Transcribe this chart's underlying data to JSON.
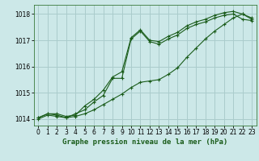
{
  "background_color": "#cce8e8",
  "grid_color": "#aacccc",
  "line_color": "#1a5c1a",
  "marker_color": "#1a5c1a",
  "title": "Graphe pression niveau de la mer (hPa)",
  "ylim": [
    1013.75,
    1018.35
  ],
  "xlim": [
    -0.5,
    23.5
  ],
  "yticks": [
    1014,
    1015,
    1016,
    1017,
    1018
  ],
  "xticks": [
    0,
    1,
    2,
    3,
    4,
    5,
    6,
    7,
    8,
    9,
    10,
    11,
    12,
    13,
    14,
    15,
    16,
    17,
    18,
    19,
    20,
    21,
    22,
    23
  ],
  "series1_x": [
    0,
    1,
    2,
    3,
    4,
    5,
    6,
    7,
    8,
    9,
    10,
    11,
    12,
    13,
    14,
    15,
    16,
    17,
    18,
    19,
    20,
    21,
    22,
    23
  ],
  "series1_y": [
    1014.05,
    1014.2,
    1014.2,
    1014.1,
    1014.15,
    1014.5,
    1014.75,
    1015.1,
    1015.6,
    1015.8,
    1017.1,
    1017.4,
    1017.0,
    1016.95,
    1017.15,
    1017.3,
    1017.55,
    1017.7,
    1017.8,
    1017.95,
    1018.05,
    1018.1,
    1018.0,
    1017.85
  ],
  "series2_x": [
    0,
    1,
    2,
    3,
    4,
    5,
    6,
    7,
    8,
    9,
    10,
    11,
    12,
    13,
    14,
    15,
    16,
    17,
    18,
    19,
    20,
    21,
    22,
    23
  ],
  "series2_y": [
    1014.05,
    1014.2,
    1014.15,
    1014.05,
    1014.2,
    1014.35,
    1014.65,
    1014.9,
    1015.55,
    1015.55,
    1017.05,
    1017.35,
    1016.95,
    1016.85,
    1017.05,
    1017.2,
    1017.45,
    1017.6,
    1017.7,
    1017.85,
    1017.95,
    1018.0,
    1017.8,
    1017.75
  ],
  "series3_x": [
    0,
    1,
    2,
    3,
    4,
    5,
    6,
    7,
    8,
    9,
    10,
    11,
    12,
    13,
    14,
    15,
    16,
    17,
    18,
    19,
    20,
    21,
    22,
    23
  ],
  "series3_y": [
    1014.0,
    1014.15,
    1014.1,
    1014.05,
    1014.1,
    1014.2,
    1014.35,
    1014.55,
    1014.75,
    1014.95,
    1015.2,
    1015.4,
    1015.45,
    1015.5,
    1015.7,
    1015.95,
    1016.35,
    1016.7,
    1017.05,
    1017.35,
    1017.6,
    1017.85,
    1018.0,
    1017.8
  ]
}
